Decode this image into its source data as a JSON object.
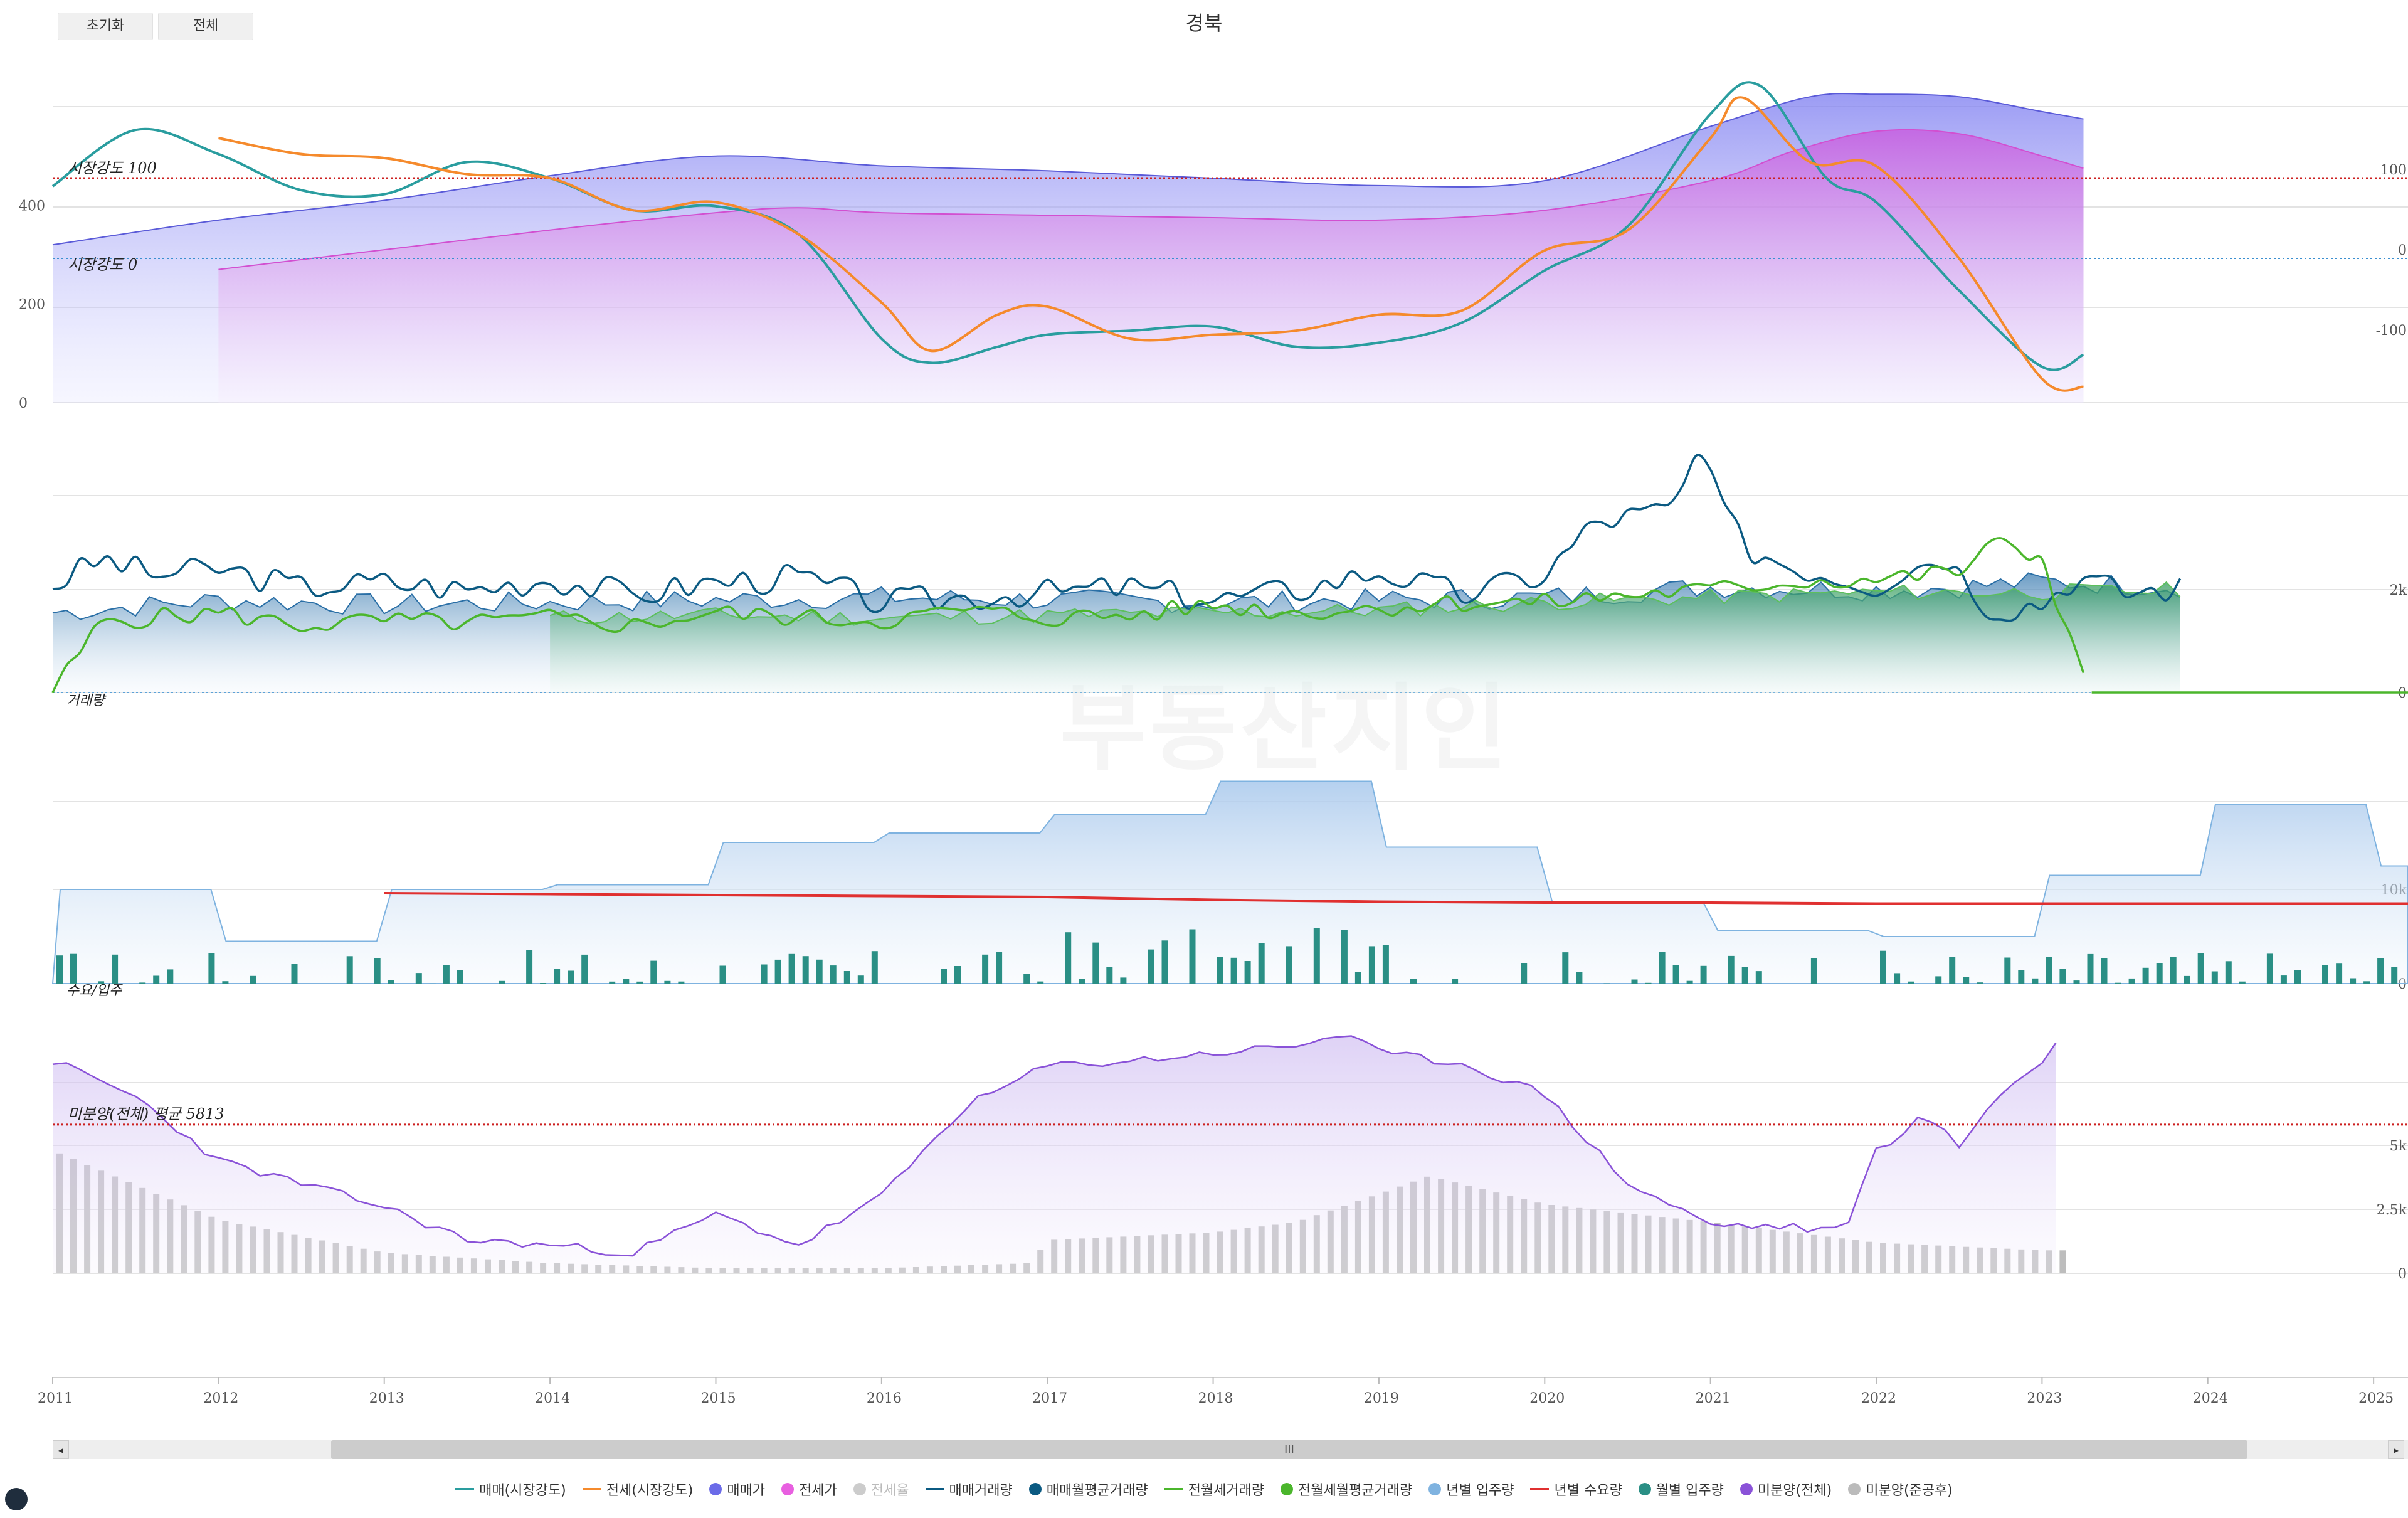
{
  "title": "경북",
  "buttons": {
    "reset": "초기화",
    "all": "전체"
  },
  "watermark": "부동산지인",
  "scrollbar": {
    "grip": "III",
    "left_arrow": "◂",
    "right_arrow": "▸"
  },
  "annotations": {
    "strength_100": "시장강도 100",
    "strength_0": "시장강도 0",
    "volume_label": "거래량",
    "supply_label": "수요/입주",
    "unsold_avg": "미분양(전체) 평균 5813"
  },
  "colors": {
    "sale_strength": "#2a9d9f",
    "jeonse_strength": "#f58a2c",
    "sale_price": "#6b6be8",
    "jeonse_price": "#e85fe0",
    "jeonse_ratio": "#cccccc",
    "sale_volume": "#0b5a82",
    "sale_volume_avg": "#0b5a82",
    "jeonse_volume": "#4bb62c",
    "jeonse_volume_avg": "#4bb62c",
    "yearly_supply": "#7fb3e0",
    "yearly_demand": "#e03030",
    "monthly_supply": "#2a8f85",
    "unsold_total": "#8a52d8",
    "unsold_completed": "#bbbbbb"
  },
  "legend": [
    {
      "label": "매매(시장강도)",
      "marker": "line",
      "color": "#2a9d9f",
      "muted": false
    },
    {
      "label": "전세(시장강도)",
      "marker": "line",
      "color": "#f58a2c",
      "muted": false
    },
    {
      "label": "매매가",
      "marker": "dot",
      "color": "#6b6be8",
      "muted": false
    },
    {
      "label": "전세가",
      "marker": "dot",
      "color": "#e85fe0",
      "muted": false
    },
    {
      "label": "전세율",
      "marker": "dot",
      "color": "#cccccc",
      "muted": true
    },
    {
      "label": "매매거래량",
      "marker": "line",
      "color": "#0b5a82",
      "muted": false
    },
    {
      "label": "매매월평균거래량",
      "marker": "dot",
      "color": "#0b5a82",
      "muted": false
    },
    {
      "label": "전월세거래량",
      "marker": "line",
      "color": "#4bb62c",
      "muted": false
    },
    {
      "label": "전월세월평균거래량",
      "marker": "dot",
      "color": "#4bb62c",
      "muted": false
    },
    {
      "label": "년별 입주량",
      "marker": "dot",
      "color": "#7fb3e0",
      "muted": false
    },
    {
      "label": "년별 수요량",
      "marker": "line",
      "color": "#e03030",
      "muted": false
    },
    {
      "label": "월별 입주량",
      "marker": "dot",
      "color": "#2a8f85",
      "muted": false
    },
    {
      "label": "미분양(전체)",
      "marker": "dot",
      "color": "#8a52d8",
      "muted": false
    },
    {
      "label": "미분양(준공후)",
      "marker": "dot",
      "color": "#bbbbbb",
      "muted": false
    }
  ],
  "chart_data": [
    {
      "type": "area",
      "panel": "market-strength-and-price",
      "x": [
        2011,
        2012,
        2013,
        2014,
        2015,
        2016,
        2017,
        2018,
        2019,
        2020,
        2021,
        2022,
        2023,
        2024,
        2025
      ],
      "y_left_ticks": [
        "0",
        "200",
        "400"
      ],
      "y_right_ticks": [
        "100",
        "0",
        "-100"
      ],
      "reference_lines": [
        {
          "label": "시장강도 100",
          "value": 100,
          "axis": "right"
        },
        {
          "label": "시장강도 0",
          "value": 0,
          "axis": "right"
        }
      ],
      "series": [
        {
          "name": "매매가",
          "x": [
            2011,
            2012,
            2013,
            2014,
            2015,
            2016,
            2017,
            2018,
            2019,
            2020,
            2021,
            2021.6,
            2022,
            2022.5,
            2023,
            2023.25
          ],
          "values": [
            320,
            370,
            410,
            460,
            500,
            480,
            470,
            455,
            440,
            450,
            560,
            620,
            625,
            620,
            590,
            575
          ]
        },
        {
          "name": "전세가",
          "x": [
            2012,
            2013,
            2014,
            2015,
            2015.5,
            2016,
            2017,
            2018,
            2019,
            2020,
            2021,
            2021.5,
            2022,
            2022.5,
            2023,
            2023.25
          ],
          "values": [
            270,
            310,
            350,
            385,
            395,
            385,
            380,
            375,
            370,
            390,
            450,
            510,
            550,
            545,
            500,
            475
          ]
        },
        {
          "name": "매매(시장강도)",
          "x": [
            2011,
            2011.5,
            2012,
            2012.5,
            2013,
            2013.5,
            2014,
            2014.5,
            2015,
            2015.5,
            2016,
            2016.3,
            2016.7,
            2017,
            2017.5,
            2018,
            2018.5,
            2019,
            2019.5,
            2020,
            2020.5,
            2021,
            2021.3,
            2021.7,
            2022,
            2022.5,
            2023,
            2023.25
          ],
          "values": [
            90,
            160,
            130,
            85,
            80,
            120,
            100,
            60,
            65,
            30,
            -100,
            -130,
            -110,
            -95,
            -90,
            -85,
            -110,
            -105,
            -80,
            -15,
            40,
            180,
            215,
            100,
            70,
            -40,
            -135,
            -120
          ]
        },
        {
          "name": "전세(시장강도)",
          "x": [
            2012,
            2012.5,
            2013,
            2013.5,
            2014,
            2014.5,
            2015,
            2015.5,
            2016,
            2016.3,
            2016.7,
            2017,
            2017.5,
            2018,
            2018.5,
            2019,
            2019.5,
            2020,
            2020.5,
            2021,
            2021.2,
            2021.6,
            2022,
            2022.5,
            2023,
            2023.25
          ],
          "values": [
            150,
            130,
            125,
            105,
            100,
            60,
            70,
            30,
            -55,
            -115,
            -70,
            -60,
            -100,
            -95,
            -90,
            -70,
            -65,
            10,
            35,
            150,
            200,
            120,
            115,
            0,
            -150,
            -160
          ]
        }
      ]
    },
    {
      "type": "line",
      "panel": "transaction-volume",
      "label": "거래량",
      "x": [
        2011,
        2012,
        2013,
        2014,
        2015,
        2016,
        2017,
        2018,
        2019,
        2020,
        2021,
        2022,
        2023,
        2024,
        2025
      ],
      "y_right_ticks": [
        "0",
        "2k"
      ],
      "series": [
        {
          "name": "매매거래량",
          "x": [
            2011,
            2011.3,
            2011.6,
            2012,
            2012.5,
            2013,
            2013.5,
            2014,
            2014.5,
            2015,
            2015.5,
            2016,
            2016.5,
            2017,
            2017.5,
            2018,
            2018.5,
            2019,
            2019.5,
            2020,
            2020.3,
            2020.8,
            2020.9,
            2021.2,
            2021.5,
            2022,
            2022.4,
            2022.7,
            2023,
            2023.2,
            2023.5,
            2023.9
          ],
          "values": [
            2100,
            2600,
            2300,
            2400,
            2050,
            2150,
            2000,
            2200,
            1900,
            2150,
            2250,
            1750,
            1850,
            1950,
            2050,
            1800,
            2000,
            2350,
            1900,
            2300,
            3300,
            3600,
            4700,
            2850,
            2450,
            2100,
            2700,
            1600,
            1750,
            2250,
            1950,
            2050
          ]
        },
        {
          "name": "매매월평균거래량",
          "x": [
            2011,
            2012,
            2013,
            2014,
            2015,
            2016,
            2017,
            2018,
            2019,
            2020,
            2021,
            2022,
            2022.5,
            2023,
            2023.5,
            2023.9
          ],
          "values": [
            1550,
            1800,
            1700,
            1750,
            1800,
            1850,
            1800,
            1750,
            1800,
            1850,
            2050,
            2000,
            2050,
            2150,
            2100,
            2050
          ]
        },
        {
          "name": "전월세거래량",
          "x": [
            2011,
            2011.3,
            2011.6,
            2012,
            2012.5,
            2013,
            2013.5,
            2014,
            2014.5,
            2015,
            2015.5,
            2016,
            2016.5,
            2017,
            2017.5,
            2018,
            2018.5,
            2019,
            2019.5,
            2020,
            2020.5,
            2021,
            2021.5,
            2022,
            2022.5,
            2022.7,
            2023,
            2023.2,
            2023.3
          ],
          "values": [
            0,
            1400,
            1450,
            1550,
            1300,
            1400,
            1350,
            1450,
            1300,
            1550,
            1450,
            1400,
            1600,
            1450,
            1500,
            1700,
            1550,
            1650,
            1750,
            1750,
            1900,
            2000,
            2150,
            2200,
            2350,
            2900,
            2600,
            800,
            0
          ]
        },
        {
          "name": "전월세월평균거래량",
          "x": [
            2014,
            2015,
            2016,
            2017,
            2018,
            2019,
            2020,
            2021,
            2022,
            2023,
            2023.9
          ],
          "values": [
            1450,
            1500,
            1450,
            1500,
            1550,
            1600,
            1750,
            1850,
            1950,
            1950,
            2000
          ]
        }
      ]
    },
    {
      "type": "bar",
      "panel": "supply-demand",
      "label": "수요/입주",
      "x": [
        2011,
        2012,
        2013,
        2014,
        2015,
        2016,
        2017,
        2018,
        2019,
        2020,
        2021,
        2022,
        2023,
        2024,
        2025
      ],
      "y_right_ticks": [
        "0",
        "10k"
      ],
      "series": [
        {
          "name": "년별 입주량",
          "categories": [
            "2011",
            "2012",
            "2013",
            "2014",
            "2015",
            "2016",
            "2017",
            "2018",
            "2019",
            "2020",
            "2021",
            "2022",
            "2023",
            "2024",
            "2025"
          ],
          "values": [
            10000,
            4500,
            10000,
            10500,
            15000,
            16000,
            18000,
            21500,
            14500,
            8700,
            5600,
            5000,
            11500,
            19000,
            12500
          ]
        },
        {
          "name": "년별 수요량",
          "x": [
            2013,
            2014,
            2015,
            2016,
            2017,
            2018,
            2019,
            2020,
            2021,
            2022,
            2023,
            2024,
            2025
          ],
          "values": [
            9600,
            9500,
            9400,
            9300,
            9200,
            8900,
            8700,
            8600,
            8600,
            8500,
            8500,
            8500,
            8500
          ]
        },
        {
          "name": "월별 입주량",
          "pattern": "monthly bars ranging 0 to about 6000",
          "max": 6000
        }
      ]
    },
    {
      "type": "area",
      "panel": "unsold",
      "x": [
        2011,
        2012,
        2013,
        2014,
        2015,
        2016,
        2017,
        2018,
        2019,
        2020,
        2021,
        2022,
        2023,
        2024,
        2025
      ],
      "y_right_ticks": [
        "0",
        "2.5k",
        "5k"
      ],
      "reference_lines": [
        {
          "label": "미분양(전체) 평균 5813",
          "value": 5813
        }
      ],
      "series": [
        {
          "name": "미분양(전체)",
          "x": [
            2011,
            2011.5,
            2012,
            2012.5,
            2013,
            2013.5,
            2014,
            2014.5,
            2015,
            2015.5,
            2016,
            2016.5,
            2017,
            2017.5,
            2018,
            2018.5,
            2018.8,
            2019,
            2019.5,
            2020,
            2020.5,
            2021,
            2021.5,
            2021.8,
            2022,
            2022.3,
            2022.5,
            2022.7,
            2023,
            2023.1
          ],
          "values": [
            8300,
            6900,
            4400,
            3500,
            2600,
            1300,
            1100,
            800,
            2300,
            1100,
            3000,
            6500,
            8100,
            8300,
            8600,
            8900,
            9400,
            8600,
            8200,
            7000,
            3500,
            1900,
            1800,
            1600,
            4800,
            6200,
            4900,
            6800,
            8200,
            9200
          ]
        },
        {
          "name": "미분양(준공후)",
          "x": [
            2011,
            2012,
            2013,
            2014,
            2015,
            2016,
            2016.9,
            2017,
            2018,
            2018.5,
            2019,
            2019.3,
            2020,
            2021,
            2022,
            2023,
            2023.1
          ],
          "values": [
            4800,
            2100,
            800,
            400,
            200,
            200,
            400,
            1300,
            1600,
            2000,
            3100,
            3800,
            2700,
            2000,
            1200,
            900,
            900
          ]
        }
      ]
    }
  ]
}
